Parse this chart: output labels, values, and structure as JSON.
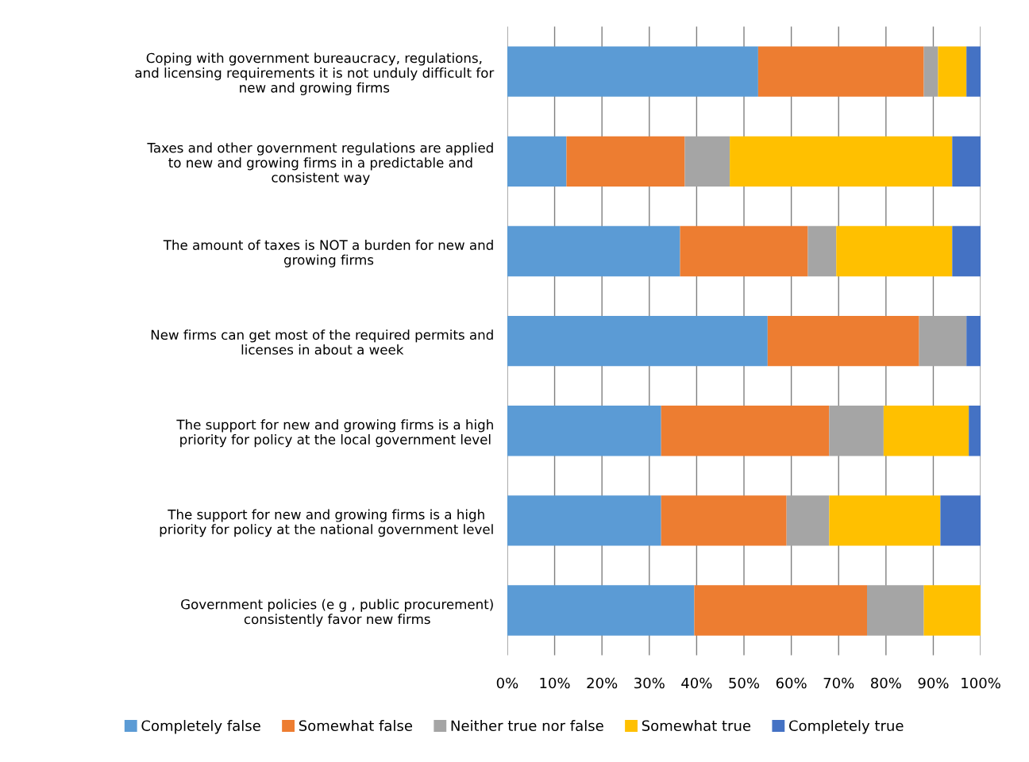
{
  "chart_data": {
    "type": "bar",
    "orientation": "horizontal",
    "stacked": true,
    "categories": [
      "Coping with government bureaucracy, regulations,\nand licensing requirements it is not unduly difficult for\nnew and growing firms",
      "Taxes and other government regulations are applied\nto new and growing firms in a predictable and\nconsistent way",
      "The amount of taxes is NOT a burden for new and\ngrowing firms",
      "New firms can get most of the required permits and\nlicenses in about a week",
      "The support for new and growing firms is a high\npriority for policy at the local government level",
      "The support for new and growing firms is a high\npriority for policy at the national government level",
      "Government policies (e g , public procurement)\nconsistently favor new firms"
    ],
    "series": [
      {
        "name": "Completely false",
        "color": "#5b9bd5",
        "values": [
          53,
          12.5,
          36.5,
          55,
          32.5,
          32.5,
          39.5
        ]
      },
      {
        "name": "Somewhat false",
        "color": "#ed7d31",
        "values": [
          35,
          25,
          27,
          32,
          35.5,
          26.5,
          36.5
        ]
      },
      {
        "name": "Neither true nor false",
        "color": "#a5a5a5",
        "values": [
          3,
          9.5,
          6,
          10,
          11.5,
          9,
          12
        ]
      },
      {
        "name": "Somewhat true",
        "color": "#ffc000",
        "values": [
          6,
          47,
          24.5,
          0,
          18,
          23.5,
          12
        ]
      },
      {
        "name": "Completely true",
        "color": "#4472c4",
        "values": [
          3,
          6,
          6,
          3,
          2.5,
          8.5,
          0
        ]
      }
    ],
    "xlim": [
      0,
      100
    ],
    "xticks": [
      {
        "value": 0,
        "label": "0%"
      },
      {
        "value": 10,
        "label": "10%"
      },
      {
        "value": 20,
        "label": "20%"
      },
      {
        "value": 30,
        "label": "30%"
      },
      {
        "value": 40,
        "label": "40%"
      },
      {
        "value": 50,
        "label": "50%"
      },
      {
        "value": 60,
        "label": "60%"
      },
      {
        "value": 70,
        "label": "70%"
      },
      {
        "value": 80,
        "label": "80%"
      },
      {
        "value": 90,
        "label": "90%"
      },
      {
        "value": 100,
        "label": "100%"
      }
    ],
    "grid": "x",
    "legend": "bottom"
  }
}
